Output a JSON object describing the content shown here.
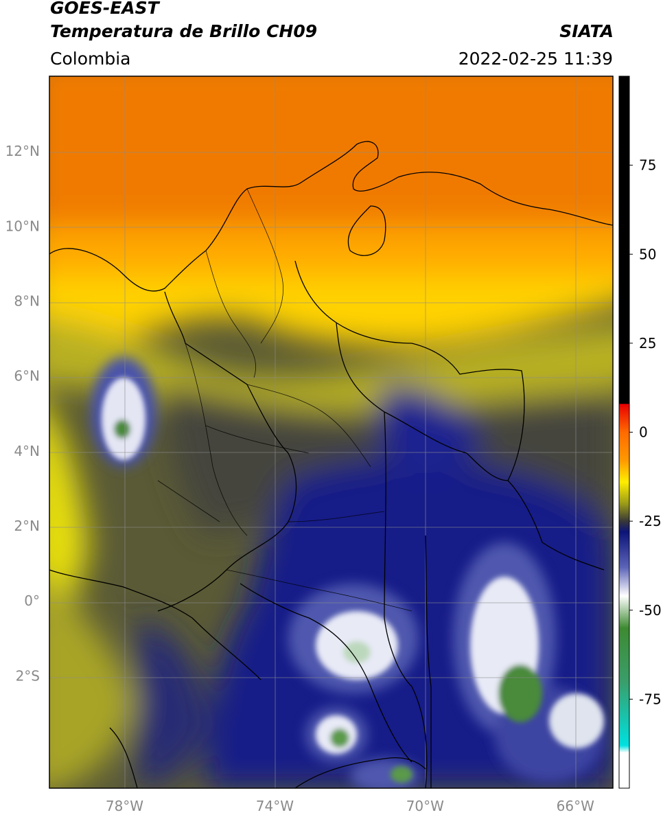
{
  "header": {
    "satellite": "GOES-EAST",
    "product": "Temperatura de Brillo CH09",
    "region": "Colombia",
    "agency": "SIATA",
    "datetime": "2022-02-25 11:39"
  },
  "map": {
    "lon_range": [
      -80,
      -65
    ],
    "lat_range": [
      -5,
      14
    ],
    "lat_ticks": [
      {
        "value": 12,
        "label": "12°N"
      },
      {
        "value": 10,
        "label": "10°N"
      },
      {
        "value": 8,
        "label": "8°N"
      },
      {
        "value": 6,
        "label": "6°N"
      },
      {
        "value": 4,
        "label": "4°N"
      },
      {
        "value": 2,
        "label": "2°N"
      },
      {
        "value": 0,
        "label": "0°"
      },
      {
        "value": -2,
        "label": "2°S"
      }
    ],
    "lon_ticks": [
      {
        "value": -78,
        "label": "78°W"
      },
      {
        "value": -74,
        "label": "74°W"
      },
      {
        "value": -70,
        "label": "70°W"
      },
      {
        "value": -66,
        "label": "66°W"
      }
    ],
    "gridlines": true
  },
  "colorbar": {
    "range": [
      -100,
      100
    ],
    "ticks": [
      {
        "value": 75,
        "label": "75"
      },
      {
        "value": 50,
        "label": "50"
      },
      {
        "value": 25,
        "label": "25"
      },
      {
        "value": 0,
        "label": "0"
      },
      {
        "value": -25,
        "label": "-25"
      },
      {
        "value": -50,
        "label": "-50"
      },
      {
        "value": -75,
        "label": "-75"
      }
    ],
    "stops": [
      {
        "value": 100,
        "color": "#000000"
      },
      {
        "value": 8,
        "color": "#000000"
      },
      {
        "value": 7.9,
        "color": "#e80000"
      },
      {
        "value": 0,
        "color": "#ff6a00"
      },
      {
        "value": -8,
        "color": "#ff9a00"
      },
      {
        "value": -14,
        "color": "#ffee00"
      },
      {
        "value": -20,
        "color": "#9c9c18"
      },
      {
        "value": -25,
        "color": "#383838"
      },
      {
        "value": -28,
        "color": "#0c1478"
      },
      {
        "value": -38,
        "color": "#5c64b8"
      },
      {
        "value": -46,
        "color": "#ffffff"
      },
      {
        "value": -55,
        "color": "#3e8a32"
      },
      {
        "value": -70,
        "color": "#3a9e6a"
      },
      {
        "value": -88,
        "color": "#00e0e0"
      },
      {
        "value": -90,
        "color": "#ffffff"
      },
      {
        "value": -100,
        "color": "#ffffff"
      }
    ]
  }
}
